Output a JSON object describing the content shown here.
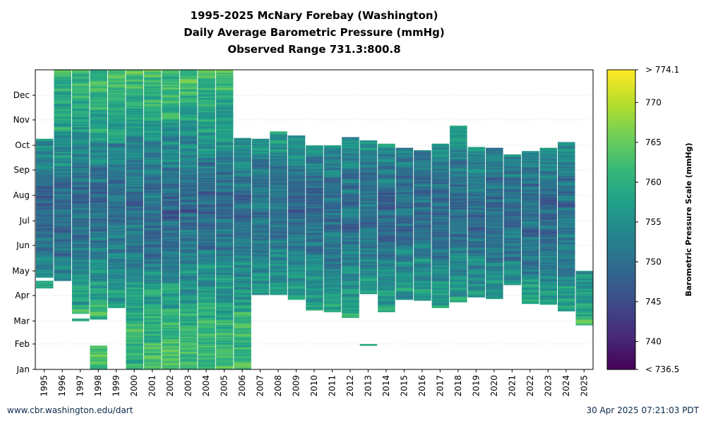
{
  "chart_data": {
    "type": "heatmap",
    "title": "1995-2025 McNary Forebay (Washington)",
    "subtitle": "Daily Average Barometric Pressure (mmHg)",
    "range_label": "Observed Range 731.3:800.8",
    "x": [
      "1995",
      "1996",
      "1997",
      "1998",
      "1999",
      "2000",
      "2001",
      "2002",
      "2003",
      "2004",
      "2005",
      "2006",
      "2007",
      "2008",
      "2009",
      "2010",
      "2011",
      "2012",
      "2013",
      "2014",
      "2015",
      "2016",
      "2017",
      "2018",
      "2019",
      "2020",
      "2021",
      "2022",
      "2023",
      "2024",
      "2025"
    ],
    "y_months": [
      "Jan",
      "Feb",
      "Mar",
      "Apr",
      "May",
      "Jun",
      "Jul",
      "Aug",
      "Sep",
      "Oct",
      "Nov",
      "Dec"
    ],
    "colorbar": {
      "label": "Barometric Pressure Scale (mmHg)",
      "min": 736.5,
      "max": 774.1,
      "ticks": [
        740,
        745,
        750,
        755,
        760,
        765,
        770
      ],
      "top_label": "> 774.1",
      "bottom_label": "< 736.5",
      "colormap": "viridis"
    },
    "coverage": [
      {
        "year": "1995",
        "segments": [
          [
            100,
            108
          ],
          [
            113,
            281
          ]
        ]
      },
      {
        "year": "1996",
        "segments": [
          [
            109,
            365
          ]
        ]
      },
      {
        "year": "1997",
        "segments": [
          [
            60,
            62
          ],
          [
            69,
            365
          ]
        ]
      },
      {
        "year": "1998",
        "segments": [
          [
            1,
            29
          ],
          [
            62,
            365
          ]
        ]
      },
      {
        "year": "1999",
        "segments": [
          [
            76,
            365
          ]
        ]
      },
      {
        "year": "2000",
        "segments": [
          [
            1,
            365
          ]
        ]
      },
      {
        "year": "2001",
        "segments": [
          [
            1,
            365
          ]
        ]
      },
      {
        "year": "2002",
        "segments": [
          [
            1,
            365
          ]
        ]
      },
      {
        "year": "2003",
        "segments": [
          [
            1,
            365
          ]
        ]
      },
      {
        "year": "2004",
        "segments": [
          [
            1,
            365
          ]
        ]
      },
      {
        "year": "2005",
        "segments": [
          [
            1,
            365
          ]
        ]
      },
      {
        "year": "2006",
        "segments": [
          [
            1,
            282
          ]
        ]
      },
      {
        "year": "2007",
        "segments": [
          [
            92,
            281
          ]
        ]
      },
      {
        "year": "2008",
        "segments": [
          [
            92,
            290
          ]
        ]
      },
      {
        "year": "2009",
        "segments": [
          [
            86,
            285
          ]
        ]
      },
      {
        "year": "2010",
        "segments": [
          [
            73,
            273
          ]
        ]
      },
      {
        "year": "2011",
        "segments": [
          [
            71,
            273
          ]
        ]
      },
      {
        "year": "2012",
        "segments": [
          [
            64,
            283
          ]
        ]
      },
      {
        "year": "2013",
        "segments": [
          [
            30,
            31
          ],
          [
            93,
            279
          ]
        ]
      },
      {
        "year": "2014",
        "segments": [
          [
            71,
            275
          ]
        ]
      },
      {
        "year": "2015",
        "segments": [
          [
            86,
            270
          ]
        ]
      },
      {
        "year": "2016",
        "segments": [
          [
            85,
            267
          ]
        ]
      },
      {
        "year": "2017",
        "segments": [
          [
            76,
            275
          ]
        ]
      },
      {
        "year": "2018",
        "segments": [
          [
            83,
            297
          ]
        ]
      },
      {
        "year": "2019",
        "segments": [
          [
            89,
            271
          ]
        ]
      },
      {
        "year": "2020",
        "segments": [
          [
            87,
            270
          ]
        ]
      },
      {
        "year": "2021",
        "segments": [
          [
            104,
            262
          ]
        ]
      },
      {
        "year": "2022",
        "segments": [
          [
            81,
            266
          ]
        ]
      },
      {
        "year": "2023",
        "segments": [
          [
            80,
            270
          ]
        ]
      },
      {
        "year": "2024",
        "segments": [
          [
            72,
            277
          ]
        ]
      },
      {
        "year": "2025",
        "segments": [
          [
            55,
            120
          ]
        ]
      }
    ]
  },
  "footer": {
    "left": "www.cbr.washington.edu/dart",
    "right": "30 Apr 2025 07:21:03 PDT"
  }
}
